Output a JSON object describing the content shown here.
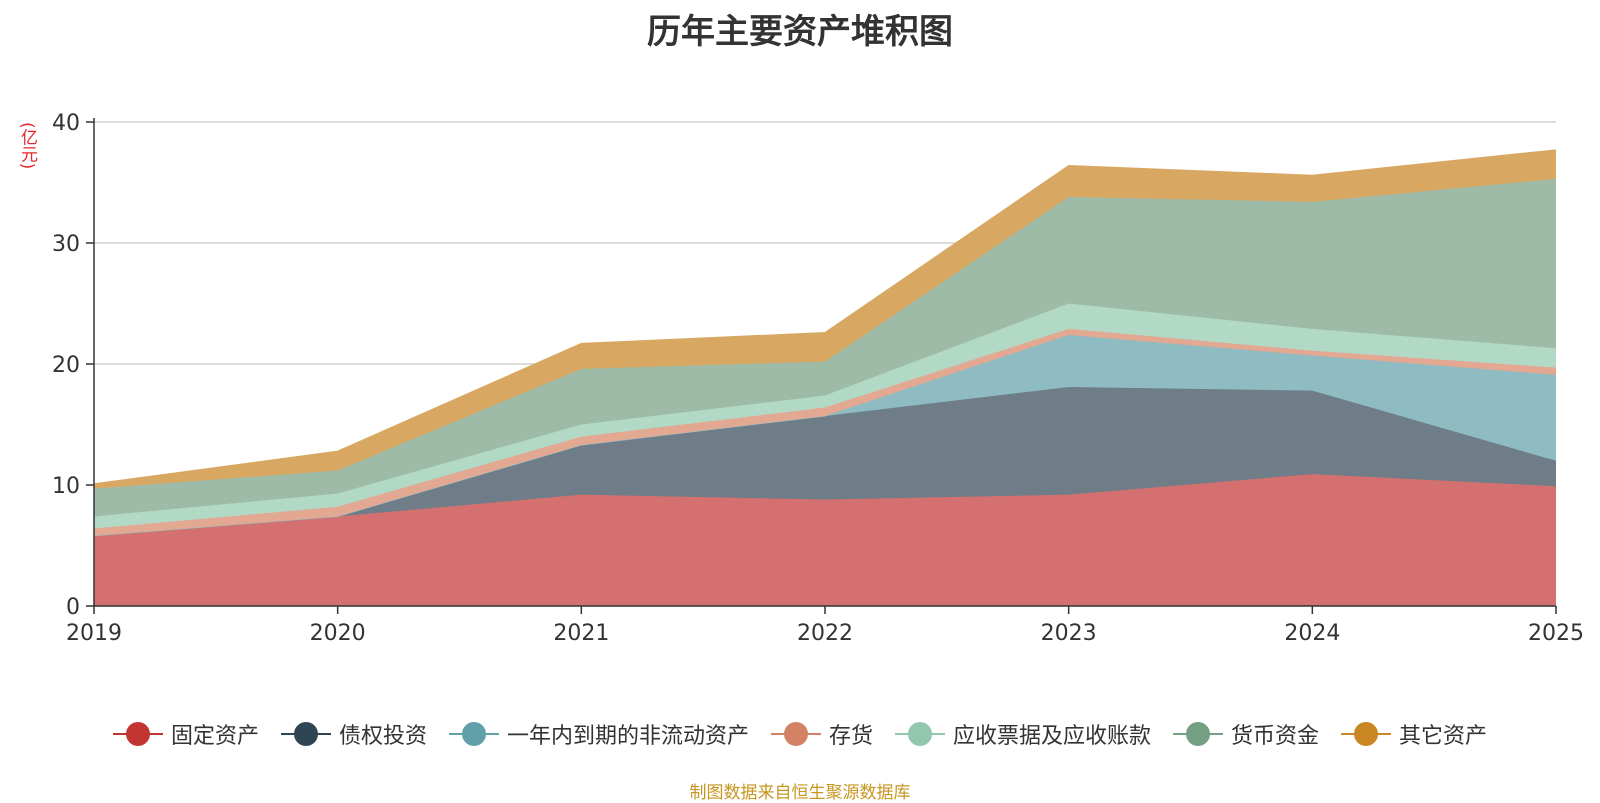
{
  "title": "历年主要资产堆积图",
  "unit_label": "(亿元)",
  "source": "制图数据来自恒生聚源数据库",
  "chart_data": {
    "type": "area",
    "stacked": true,
    "title": "历年主要资产堆积图",
    "ylabel": "(亿元)",
    "xlabel": "",
    "categories": [
      "2019",
      "2020",
      "2021",
      "2022",
      "2023",
      "2024",
      "2025"
    ],
    "ylim": [
      0,
      40
    ],
    "yticks": [
      0,
      10,
      20,
      30,
      40
    ],
    "grid": true,
    "legend_position": "bottom",
    "series": [
      {
        "name": "固定资产",
        "color": "#c23531",
        "fill": "#d4706f",
        "values": [
          5.8,
          7.4,
          9.2,
          8.8,
          9.2,
          10.9,
          9.9
        ]
      },
      {
        "name": "债权投资",
        "color": "#2f4554",
        "fill": "#6f7d88",
        "values": [
          0.0,
          0.0,
          4.1,
          6.9,
          8.9,
          6.9,
          2.1
        ]
      },
      {
        "name": "一年内到期的非流动资产",
        "color": "#61a0a8",
        "fill": "#8fbcc2",
        "values": [
          0.0,
          0.0,
          0.0,
          0.0,
          4.3,
          2.9,
          7.1
        ]
      },
      {
        "name": "存货",
        "color": "#d48265",
        "fill": "#e2a892",
        "values": [
          0.6,
          0.8,
          0.7,
          0.7,
          0.5,
          0.4,
          0.6
        ]
      },
      {
        "name": "应收票据及应收账款",
        "color": "#91c7ae",
        "fill": "#b2d8c6",
        "values": [
          1.0,
          1.1,
          1.0,
          1.0,
          2.1,
          1.8,
          1.6
        ]
      },
      {
        "name": "货币资金",
        "color": "#749f83",
        "fill": "#9dbba7",
        "values": [
          2.3,
          1.9,
          4.6,
          2.8,
          8.8,
          10.5,
          14.0
        ]
      },
      {
        "name": "其它资产",
        "color": "#ca8622",
        "fill": "#d8a862",
        "values": [
          0.4,
          1.6,
          2.1,
          2.4,
          2.6,
          2.2,
          2.4
        ]
      }
    ]
  }
}
